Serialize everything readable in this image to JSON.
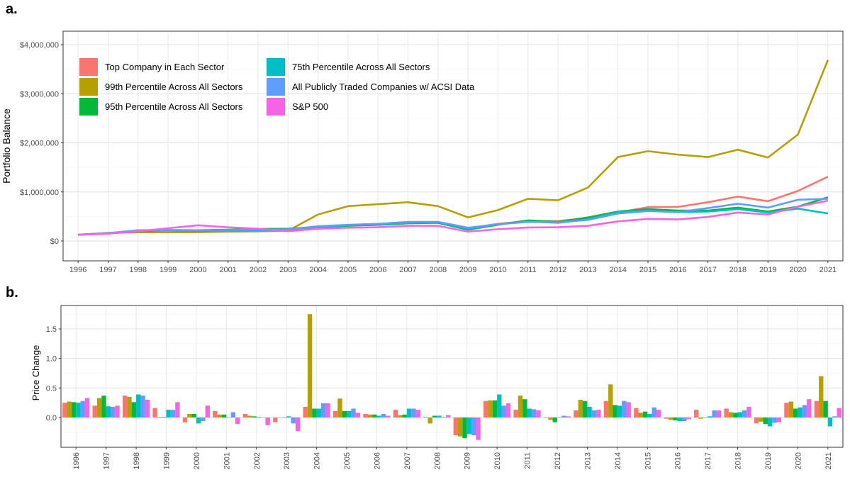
{
  "panel_a_label": "a.",
  "panel_b_label": "b.",
  "chart_data": [
    {
      "type": "line",
      "title": "",
      "xlabel": "",
      "ylabel": "Portfolio Balance",
      "x": [
        1996,
        1997,
        1998,
        1999,
        2000,
        2001,
        2002,
        2003,
        2004,
        2005,
        2006,
        2007,
        2008,
        2009,
        2010,
        2011,
        2012,
        2013,
        2014,
        2015,
        2016,
        2017,
        2018,
        2019,
        2020,
        2021
      ],
      "ylim": [
        0,
        4000000
      ],
      "yticks": [
        0,
        1000000,
        2000000,
        3000000,
        4000000
      ],
      "ytick_labels": [
        "$0",
        "$1,000,000",
        "$2,000,000",
        "$3,000,000",
        "$4,000,000"
      ],
      "grid": true,
      "legend_position": "top-left",
      "series": [
        {
          "name": "Top Company in Each Sector",
          "color": "#F8766D",
          "values": [
            125000,
            150000,
            210000,
            215000,
            215000,
            230000,
            245000,
            230000,
            275000,
            315000,
            330000,
            370000,
            375000,
            260000,
            350000,
            410000,
            405000,
            470000,
            580000,
            690000,
            695000,
            790000,
            905000,
            810000,
            1020000,
            1310000
          ]
        },
        {
          "name": "99th Percentile Across All Sectors",
          "color": "#B79F00",
          "values": [
            125000,
            165000,
            175000,
            175000,
            180000,
            190000,
            195000,
            210000,
            540000,
            710000,
            750000,
            790000,
            710000,
            480000,
            630000,
            860000,
            830000,
            1090000,
            1710000,
            1830000,
            1760000,
            1710000,
            1860000,
            1700000,
            2170000,
            3690000
          ]
        },
        {
          "name": "95th Percentile Across All Sectors",
          "color": "#00BA38",
          "values": [
            130000,
            160000,
            210000,
            220000,
            220000,
            230000,
            245000,
            250000,
            285000,
            310000,
            330000,
            360000,
            370000,
            230000,
            330000,
            420000,
            390000,
            480000,
            600000,
            650000,
            620000,
            620000,
            680000,
            600000,
            700000,
            890000
          ]
        },
        {
          "name": "75th Percentile Across All Sectors",
          "color": "#00BFC4",
          "values": [
            130000,
            150000,
            200000,
            215000,
            210000,
            215000,
            220000,
            225000,
            290000,
            320000,
            340000,
            370000,
            380000,
            250000,
            340000,
            400000,
            370000,
            440000,
            590000,
            620000,
            590000,
            600000,
            650000,
            580000,
            660000,
            560000
          ]
        },
        {
          "name": "All Publicly Traded Companies w/ ACSI Data",
          "color": "#619CFF",
          "values": [
            130000,
            160000,
            220000,
            225000,
            220000,
            225000,
            230000,
            235000,
            300000,
            330000,
            350000,
            390000,
            390000,
            270000,
            340000,
            390000,
            380000,
            430000,
            560000,
            610000,
            590000,
            670000,
            760000,
            680000,
            840000,
            860000
          ]
        },
        {
          "name": "S&P 500",
          "color": "#F564E3",
          "values": [
            130000,
            150000,
            200000,
            260000,
            320000,
            280000,
            250000,
            200000,
            250000,
            270000,
            280000,
            310000,
            310000,
            190000,
            240000,
            275000,
            280000,
            310000,
            400000,
            450000,
            440000,
            490000,
            580000,
            540000,
            700000,
            820000
          ]
        }
      ]
    },
    {
      "type": "bar",
      "title": "",
      "xlabel": "",
      "ylabel": "Price Change",
      "categories": [
        "1996",
        "1997",
        "1998",
        "1999",
        "2000",
        "2001",
        "2002",
        "2003",
        "2004",
        "2005",
        "2006",
        "2007",
        "2008",
        "2009",
        "2010",
        "2011",
        "2012",
        "2013",
        "2014",
        "2015",
        "2016",
        "2017",
        "2018",
        "2019",
        "2020",
        "2021"
      ],
      "ylim": [
        -0.45,
        1.85
      ],
      "yticks": [
        0.0,
        0.5,
        1.0,
        1.5
      ],
      "ytick_labels": [
        "0.0",
        "0.5",
        "1.0",
        "1.5"
      ],
      "grid": true,
      "series": [
        {
          "color": "#F8766D",
          "values": [
            0.25,
            0.2,
            0.37,
            0.16,
            -0.08,
            0.11,
            0.06,
            -0.08,
            0.18,
            0.11,
            0.06,
            0.13,
            0.01,
            -0.3,
            0.28,
            0.13,
            -0.01,
            0.12,
            0.28,
            0.16,
            -0.02,
            0.13,
            0.15,
            -0.1,
            0.25,
            0.28
          ]
        },
        {
          "color": "#B79F00",
          "values": [
            0.27,
            0.33,
            0.35,
            0.01,
            0.06,
            0.05,
            0.03,
            0.0,
            1.75,
            0.32,
            0.05,
            0.04,
            -0.1,
            -0.32,
            0.29,
            0.37,
            -0.04,
            0.3,
            0.56,
            0.08,
            -0.04,
            -0.02,
            0.09,
            -0.07,
            0.27,
            0.7
          ]
        },
        {
          "color": "#00BA38",
          "values": [
            0.26,
            0.37,
            0.26,
            0.01,
            0.06,
            0.05,
            0.02,
            0.0,
            0.15,
            0.11,
            0.05,
            0.05,
            0.03,
            -0.35,
            0.29,
            0.31,
            -0.08,
            0.28,
            0.21,
            0.1,
            -0.05,
            0.0,
            0.08,
            -0.11,
            0.15,
            0.28
          ]
        },
        {
          "color": "#00BFC4",
          "values": [
            0.25,
            0.19,
            0.39,
            0.13,
            -0.1,
            0.0,
            0.01,
            0.02,
            0.15,
            0.11,
            0.03,
            0.15,
            0.03,
            -0.28,
            0.39,
            0.15,
            0.0,
            0.18,
            0.2,
            0.06,
            -0.06,
            0.02,
            0.09,
            -0.15,
            0.17,
            -0.15
          ]
        },
        {
          "color": "#619CFF",
          "values": [
            0.28,
            0.18,
            0.37,
            0.13,
            -0.06,
            0.09,
            0.0,
            -0.1,
            0.24,
            0.15,
            0.06,
            0.15,
            0.01,
            -0.3,
            0.2,
            0.14,
            0.03,
            0.12,
            0.28,
            0.17,
            -0.06,
            0.12,
            0.12,
            -0.09,
            0.21,
            0.02
          ]
        },
        {
          "color": "#F564E3",
          "values": [
            0.33,
            0.2,
            0.3,
            0.26,
            0.2,
            -0.11,
            -0.13,
            -0.23,
            0.24,
            0.08,
            0.03,
            0.13,
            0.04,
            -0.38,
            0.24,
            0.12,
            0.02,
            0.13,
            0.26,
            0.13,
            -0.03,
            0.12,
            0.18,
            -0.08,
            0.31,
            0.16
          ]
        }
      ]
    }
  ]
}
